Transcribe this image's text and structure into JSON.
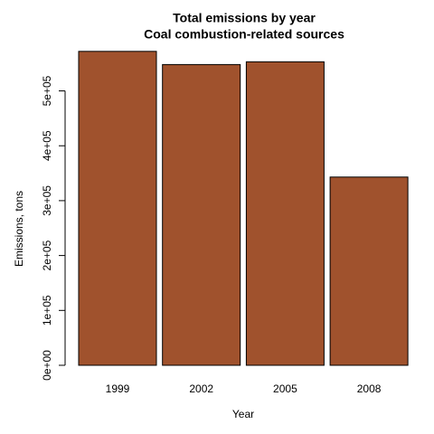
{
  "chart_data": {
    "type": "bar",
    "title": "Total emissions by year",
    "subtitle": "Coal combustion-related sources",
    "x_label": "Year",
    "y_label": "Emissions, tons",
    "categories": [
      "1999",
      "2002",
      "2005",
      "2008"
    ],
    "values": [
      572000,
      548000,
      553000,
      343000
    ],
    "color": "#a0522d",
    "ylim": [
      0,
      575000
    ],
    "yticks": [
      {
        "value": 0,
        "label": "0e+00"
      },
      {
        "value": 100000,
        "label": "1e+05"
      },
      {
        "value": 200000,
        "label": "2e+05"
      },
      {
        "value": 300000,
        "label": "3e+05"
      },
      {
        "value": 400000,
        "label": "4e+05"
      },
      {
        "value": 500000,
        "label": "5e+05"
      }
    ]
  }
}
